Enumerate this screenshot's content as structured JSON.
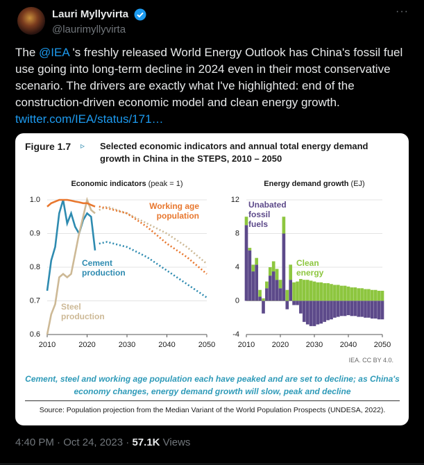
{
  "tweet": {
    "author_name": "Lauri Myllyvirta",
    "handle": "@laurimyllyvirta",
    "text_before": "The ",
    "mention": "@IEA",
    "text_after": " 's freshly released World Energy Outlook has China's fossil fuel use going into long-term decline in 2024 even in their most conservative scenario. The drivers are exactly what I've highlighted: end of the construction-driven economic model and clean energy growth.",
    "link": "twitter.com/IEA/status/171…",
    "time": "4:40 PM",
    "date": "Oct 24, 2023",
    "views": "57.1K",
    "views_label": "Views"
  },
  "figure": {
    "label": "Figure 1.7",
    "title": "Selected economic indicators and annual total energy demand growth in China in the STEPS, 2010 – 2050",
    "credit": "IEA. CC BY 4.0.",
    "caption": "Cement, steel and working age population each have peaked and are set to decline; as China's economy changes, energy demand growth will slow, peak and decline",
    "source": "Source: Population projection from the Median Variant of the World Population Prospects (UNDESA, 2022)."
  },
  "chart_data": [
    {
      "type": "line",
      "title": "Economic indicators",
      "subtitle": "(peak = 1)",
      "x": [
        2010,
        2011,
        2012,
        2013,
        2014,
        2015,
        2016,
        2017,
        2018,
        2019,
        2020,
        2021,
        2022,
        2023,
        2025,
        2030,
        2035,
        2040,
        2045,
        2050
      ],
      "xlim": [
        2010,
        2050
      ],
      "xticks": [
        2010,
        2020,
        2030,
        2040,
        2050
      ],
      "ylim": [
        0.6,
        1
      ],
      "yticks": [
        {
          "value": 1,
          "label": "1.0"
        },
        0.9,
        0.8,
        0.7,
        0.6
      ],
      "grid": true,
      "series": [
        {
          "name": "Cement production",
          "color": "#2e8bb0",
          "values": [
            0.73,
            0.82,
            0.86,
            0.96,
            1,
            0.93,
            0.96,
            0.92,
            0.9,
            0.94,
            0.96,
            0.95,
            0.85,
            null,
            null,
            null,
            null,
            null,
            null,
            null
          ],
          "projection": [
            null,
            null,
            null,
            null,
            null,
            null,
            null,
            null,
            null,
            null,
            null,
            null,
            null,
            0.87,
            0.875,
            0.86,
            0.83,
            0.79,
            0.75,
            0.71
          ]
        },
        {
          "name": "Steel production",
          "color": "#cdb996",
          "values": [
            0.6,
            0.66,
            0.69,
            0.77,
            0.78,
            0.77,
            0.78,
            0.84,
            0.9,
            0.95,
            1,
            0.97,
            0.96,
            null,
            null,
            null,
            null,
            null,
            null,
            null
          ],
          "projection": [
            null,
            null,
            null,
            null,
            null,
            null,
            null,
            null,
            null,
            null,
            null,
            null,
            null,
            0.97,
            0.98,
            0.96,
            0.93,
            0.9,
            0.86,
            0.81
          ]
        },
        {
          "name": "Working age population",
          "color": "#e8772e",
          "values": [
            0.98,
            0.99,
            0.995,
            1,
            1,
            1,
            0.998,
            0.995,
            0.993,
            0.99,
            0.99,
            0.985,
            0.98,
            null,
            null,
            null,
            null,
            null,
            null,
            null
          ],
          "projection": [
            null,
            null,
            null,
            null,
            null,
            null,
            null,
            null,
            null,
            null,
            null,
            null,
            null,
            0.98,
            0.975,
            0.96,
            0.92,
            0.87,
            0.83,
            0.78
          ]
        }
      ]
    },
    {
      "type": "bar",
      "stacked": true,
      "title": "Energy demand growth",
      "subtitle": "(EJ)",
      "x": [
        2010,
        2011,
        2012,
        2013,
        2014,
        2015,
        2016,
        2017,
        2018,
        2019,
        2020,
        2021,
        2022,
        2023,
        2024,
        2025,
        2026,
        2027,
        2028,
        2029,
        2030,
        2031,
        2032,
        2033,
        2034,
        2035,
        2036,
        2037,
        2038,
        2039,
        2040,
        2041,
        2042,
        2043,
        2044,
        2045,
        2046,
        2047,
        2048,
        2049,
        2050
      ],
      "xlim": [
        2010,
        2050
      ],
      "xticks": [
        2010,
        2020,
        2030,
        2040,
        2050
      ],
      "ylim": [
        -4,
        12
      ],
      "yticks": [
        12,
        8,
        4,
        0,
        -4
      ],
      "grid": true,
      "series": [
        {
          "name": "Unabated fossil fuels",
          "color": "#5d4a8a",
          "values": [
            9,
            6,
            3.5,
            4.3,
            0.5,
            -1.5,
            1.5,
            3,
            3.5,
            2.5,
            1.5,
            8,
            -1,
            2.5,
            -0.5,
            -0.5,
            -1.5,
            -2.5,
            -2.8,
            -3,
            -3,
            -2.8,
            -2.7,
            -2.5,
            -2.3,
            -2.2,
            -2,
            -1.9,
            -1.8,
            -1.8,
            -1.7,
            -1.8,
            -1.8,
            -1.9,
            -1.9,
            -2,
            -2,
            -2.1,
            -2.1,
            -2.2,
            -2.2
          ]
        },
        {
          "name": "Clean energy",
          "color": "#8dc63f",
          "values": [
            1,
            0.3,
            0.8,
            0.8,
            0.8,
            0.3,
            0.8,
            1,
            1.2,
            1.3,
            1,
            2,
            1.3,
            1.8,
            2.2,
            2.3,
            2.6,
            2.5,
            2.5,
            2.4,
            2.3,
            2.2,
            2.2,
            2.1,
            2.1,
            2,
            1.9,
            1.9,
            1.8,
            1.8,
            1.7,
            1.6,
            1.6,
            1.5,
            1.5,
            1.4,
            1.4,
            1.3,
            1.3,
            1.2,
            1.2
          ]
        }
      ]
    }
  ]
}
